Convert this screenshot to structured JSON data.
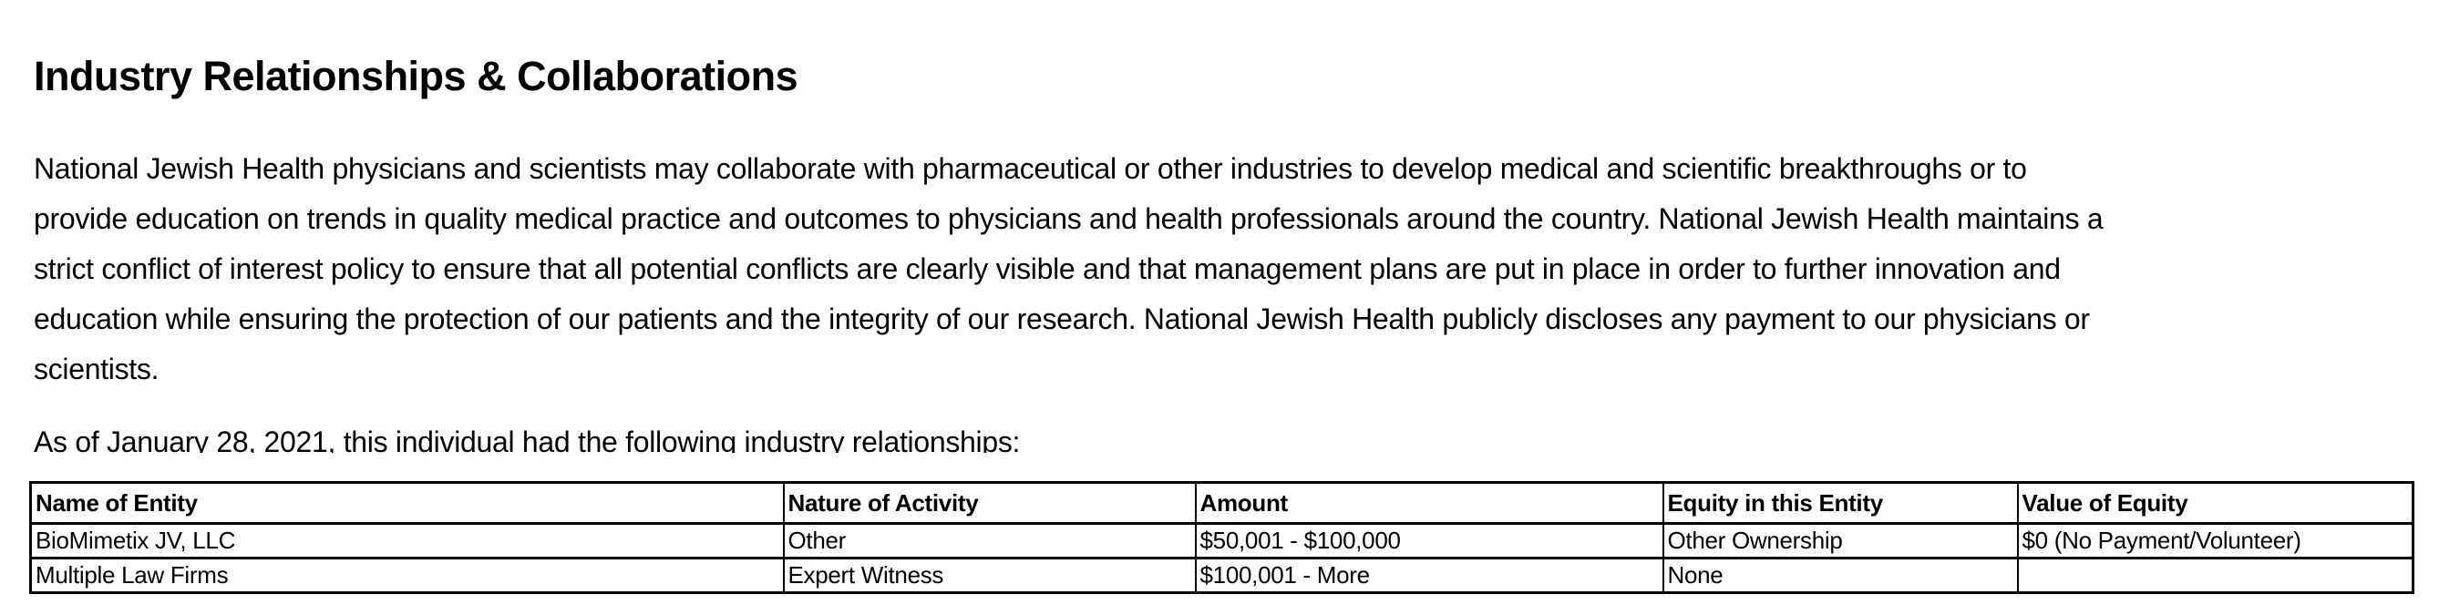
{
  "title": "Industry Relationships & Collaborations",
  "paragraph_lines": [
    "National Jewish Health physicians and scientists may collaborate with pharmaceutical or other industries to develop medical and scientific breakthroughs or to",
    "provide education on trends in quality medical practice and outcomes to physicians and health professionals around the country. National Jewish Health maintains a",
    "strict conflict of interest policy to ensure that all potential conflicts are clearly visible and that management plans are put in place in order to further innovation and",
    "education while ensuring the protection of our patients and the integrity of our research. National Jewish Health publicly discloses any payment to our physicians or",
    "scientists."
  ],
  "as_of": "As of January 28, 2021, this individual had the following industry relationships:",
  "table": {
    "headers": [
      "Name of Entity",
      "Nature of Activity",
      "Amount",
      "Equity in this Entity",
      "Value of Equity"
    ],
    "rows": [
      [
        "BioMimetix JV, LLC",
        "Other",
        "$50,001 - $100,000",
        "Other Ownership",
        "$0 (No Payment/Volunteer)"
      ],
      [
        "Multiple Law Firms",
        "Expert Witness",
        "$100,001 - More",
        "None",
        ""
      ]
    ]
  }
}
